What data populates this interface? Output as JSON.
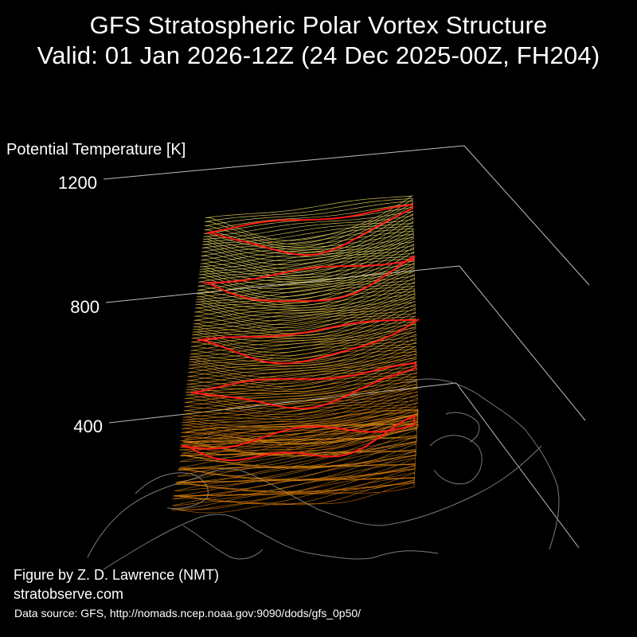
{
  "title": {
    "line1": "GFS Stratospheric Polar Vortex Structure",
    "line2": "Valid: 01 Jan 2026-12Z  (24 Dec 2025-00Z, FH204)"
  },
  "chart_data": {
    "type": "3d-isosurface",
    "zlabel": "Potential Temperature [K]",
    "z_ticks": [
      400,
      800,
      1200
    ],
    "grid": true,
    "colors": {
      "background": "#000000",
      "axis_lines": "#bdbdbd",
      "coastlines": "#7a7a7a",
      "highlight_contours": "#ff1a1a",
      "low_levels": "#e07a00",
      "high_levels": "#f0e060"
    }
  },
  "credits": {
    "author": "Figure by Z. D. Lawrence (NMT)",
    "site": "stratobserve.com",
    "source": "Data source: GFS, http://nomads.ncep.noaa.gov:9090/dods/gfs_0p50/"
  }
}
